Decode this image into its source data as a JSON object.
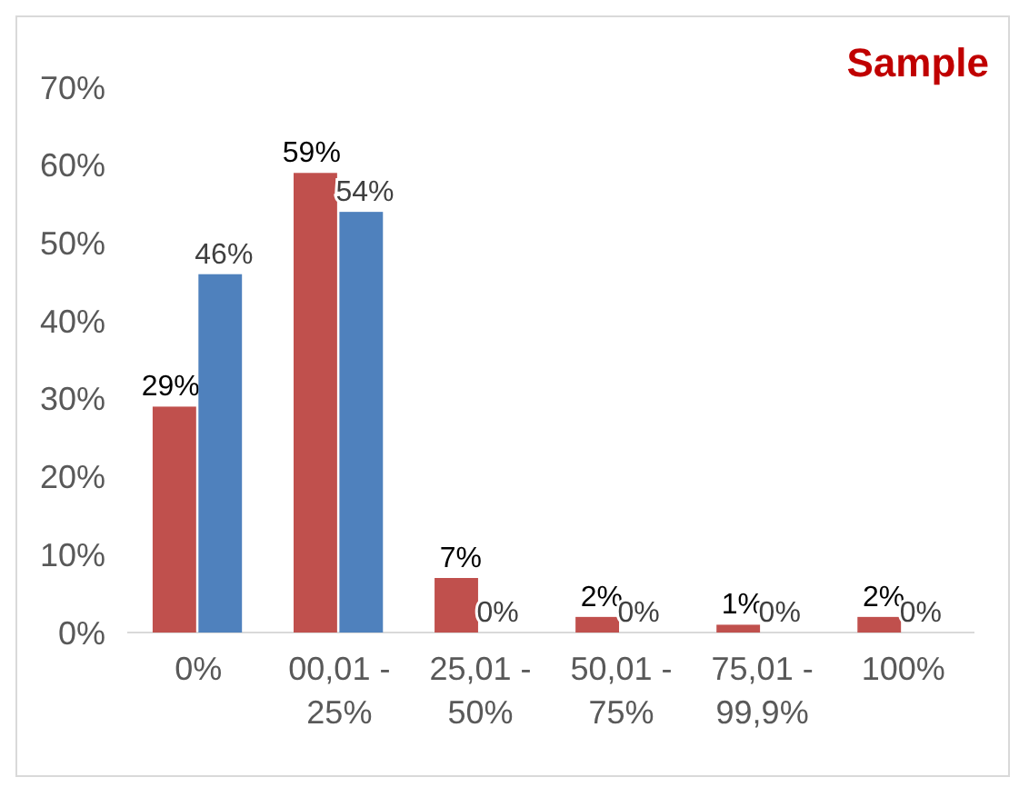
{
  "chart_data": {
    "type": "bar",
    "title": "Sample",
    "categories": [
      "0%",
      "00,01 - 25%",
      "25,01 - 50%",
      "50,01 - 75%",
      "75,01 - 99,9%",
      "100%"
    ],
    "series": [
      {
        "color": "#c0504d",
        "values": [
          29,
          59,
          7,
          2,
          1,
          2
        ],
        "value_labels": [
          "29%",
          "59%",
          "7%",
          "2%",
          "1%",
          "2%"
        ]
      },
      {
        "color": "#4f81bd",
        "values": [
          46,
          54,
          0,
          0,
          0,
          0
        ],
        "value_labels": [
          "46%",
          "54%",
          "0%",
          "0%",
          "0%",
          "0%"
        ]
      }
    ],
    "ylim": [
      0,
      70
    ],
    "yticks": [
      {
        "value": 0,
        "label": "0%"
      },
      {
        "value": 10,
        "label": "10%"
      },
      {
        "value": 20,
        "label": "20%"
      },
      {
        "value": 30,
        "label": "30%"
      },
      {
        "value": 40,
        "label": "40%"
      },
      {
        "value": 50,
        "label": "50%"
      },
      {
        "value": 60,
        "label": "60%"
      },
      {
        "value": 70,
        "label": "70%"
      }
    ]
  }
}
